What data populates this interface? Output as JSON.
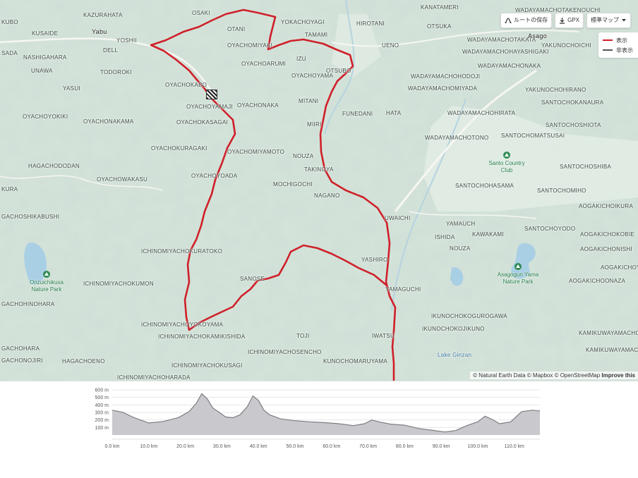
{
  "toolbar": {
    "save_route": "ルートの保存",
    "gpx": "GPX",
    "map_style": "標準マップ"
  },
  "legend": {
    "shown": "表示",
    "hidden": "非表示"
  },
  "colors": {
    "route": "#d0202a",
    "hidden_route": "#555555",
    "profile_fill": "#c9c9cd",
    "profile_line": "#7d7d82"
  },
  "attribution": {
    "text": "© Natural Earth Data © Mapbox © OpenStreetMap",
    "link": "Improve this"
  },
  "map_labels": {
    "kazurahata": "KAZURAHATA",
    "osaki": "OSAKI",
    "yokachoyagi": "YOKACHOYAGI",
    "hirotani": "HIROTANI",
    "kanatameri": "KANATAMERI",
    "wadayamacho": "WADAYAMACHOTAKENOUCHI",
    "kubo": "KUBO",
    "yabu": "Yabu",
    "kusaide": "KUSAIDE",
    "otani": "OTANI",
    "yoshii": "YOSHII",
    "tamami": "TAMAMI",
    "ueno": "UENO",
    "otsuka": "OTSUKA",
    "wadayamachotakata": "WADAYAMACHOTAKATA",
    "asago": "Asago",
    "dell": "DELL",
    "oyachomiyaki": "OYACHOMIYAKI",
    "izu": "IZU",
    "wadayamachohayashigaki": "WADAYAMACHOHAYASHIGAKI",
    "sada": "SADA",
    "nashigahara": "NASHIGAHARA",
    "oyachoarumi": "OYACHOARUMI",
    "otsubo": "OTSUBO",
    "yakunochoichi": "YAKUNOCHOICHI",
    "unawa": "UNAWA",
    "todoroki": "TODOROKI",
    "oyachoyama": "OYACHOYAMA",
    "wadayamachonaka": "WADAYAMACHONAKA",
    "wadayamachohodoji": "WADAYAMACHOHODOJI",
    "oyachokabo": "OYACHOKABO",
    "yasui": "YASUI",
    "wadayamachomiyada": "WADAYAMACHOMIYADA",
    "yakunochohirano": "YAKUNOCHOHIRANO",
    "mitani": "MITANI",
    "santochokanaura": "SANTOCHOKANAURA",
    "oyachoyamaji": "OYACHOYAMAJI",
    "oyachonaka": "OYACHONAKA",
    "oyachoyokiki": "OYACHOYOKIKI",
    "funedani": "FUNEDANI",
    "hata": "HATA",
    "wadayamachohirata": "WADAYAMACHOHIRATA",
    "oyachonakama": "OYACHONAKAMA",
    "oyachokasagai": "OYACHOKASAGAI",
    "miiri": "MIIRI",
    "santochoshiota": "SANTOCHOSHIOTA",
    "wadayamachotono": "WADAYAMACHOTONO",
    "santochomatsusai": "SANTOCHOMATSUSAI",
    "oyachokuragaki": "OYACHOKURAGAKI",
    "oyachomiyamoto": "OYACHOMIYAMOTO",
    "nouza": "NOUZA",
    "santo_cc": "Santo Country Club",
    "hagachododan": "HAGACHODODAN",
    "takinoya": "TAKINOYA",
    "santochoshiba": "SANTOCHOSHIBA",
    "oyachowakasu": "OYACHOWAKASU",
    "oyachoyoada": "OYACHOYOADA",
    "mochigochi": "MOCHIGOCHI",
    "kura": "KURA",
    "nagano": "NAGANO",
    "santochohasama": "SANTOCHOHASAMA",
    "santochomiho": "SANTOCHOMIHO",
    "aogakichoikura": "AOGAKICHOIKURA",
    "gachoshikabushi": "GACHOSHIKABUSHI",
    "uwaichi": "UWAICHI",
    "yamauch": "YAMAUCH",
    "santochoyodo": "SANTOCHOYODO",
    "ishida": "ISHIDA",
    "kawakami": "KAWAKAMI",
    "aogakichokobie": "AOGAKICHOKOBIE",
    "ichinomiyachokuratoko": "ICHINOMIYACHOKURATOKO",
    "nouza2": "NOUZA",
    "aogakichonishi": "AOGAKICHONISHI",
    "yashiro": "YASHIRO",
    "onzuichikusa": "Onzuichikusa Nature Park",
    "aogakichoya": "AOGAKICHOYA",
    "sanose": "SANOSE",
    "asagogun": "Asagogun Yama Nature Park",
    "ichinomiyachokumon": "ICHINOMIYACHOKUMON",
    "yamaguchi": "YAMAGUCHI",
    "aogakichoonaza": "AOGAKICHOONAZA",
    "gachohinohara": "GACHOHINOHARA",
    "ikunochokogurogawa": "IKUNOCHOKOGUROGAWA",
    "ichinomiyachoyokoyama": "ICHINOMIYACHOYOKOYAMA",
    "ikunochokojikuno": "IKUNOCHOKOJIKUNO",
    "iwatsu": "IWATSU",
    "kamikuwayama": "KAMIKUWAYAMACHO",
    "ichinomiyachokamikishida": "ICHINOMIYACHOKAMIKISHIDA",
    "toji": "TOJI",
    "gachohara": "GACHOHARA",
    "ichinomiyachosencho": "ICHINOMIYACHOSENCHO",
    "kamikuwayamacho": "KAMIKUWAYAMACH",
    "gachonojiri": "GACHONOJIRI",
    "hagachoeno": "HAGACHOENO",
    "kunochomaruyama": "KUNOCHOMARUYAMA",
    "lake_ginzan": "Lake Ginzan",
    "ichinomiyachokusagi": "ICHINOMIYACHOKUSAGI",
    "ichinomiyachoharada": "ICHINOMIYACHOHARADA"
  },
  "elevation": {
    "y_ticks": [
      "600 m",
      "500 m",
      "400 m",
      "300 m",
      "200 m",
      "100 m"
    ],
    "x_ticks": [
      "0.0 km",
      "10.0 km",
      "20.0 km",
      "30.0 km",
      "40.0 km",
      "50.0 km",
      "60.0 km",
      "70.0 km",
      "80.0 km",
      "90.0 km",
      "100.0 km",
      "110.0 km"
    ]
  },
  "chart_data": {
    "type": "area",
    "title": "",
    "xlabel": "",
    "ylabel": "",
    "xlim": [
      0,
      117
    ],
    "ylim": [
      0,
      600
    ],
    "series": [
      {
        "x": [
          0,
          3,
          6,
          10,
          14,
          18,
          21,
          23,
          24.5,
          26,
          27.5,
          29,
          31,
          33,
          35,
          37,
          38.5,
          40,
          41.5,
          43,
          46,
          50,
          54,
          58,
          62,
          66,
          69,
          71,
          73,
          76,
          80,
          84,
          88,
          91,
          94,
          97,
          100,
          102,
          104,
          106,
          109,
          112,
          115,
          117
        ],
        "y": [
          330,
          300,
          230,
          160,
          180,
          230,
          310,
          420,
          550,
          480,
          360,
          310,
          240,
          230,
          270,
          380,
          520,
          460,
          330,
          270,
          215,
          190,
          175,
          165,
          150,
          125,
          150,
          200,
          175,
          145,
          130,
          85,
          60,
          40,
          60,
          125,
          175,
          250,
          205,
          150,
          175,
          310,
          330,
          320
        ]
      }
    ]
  }
}
